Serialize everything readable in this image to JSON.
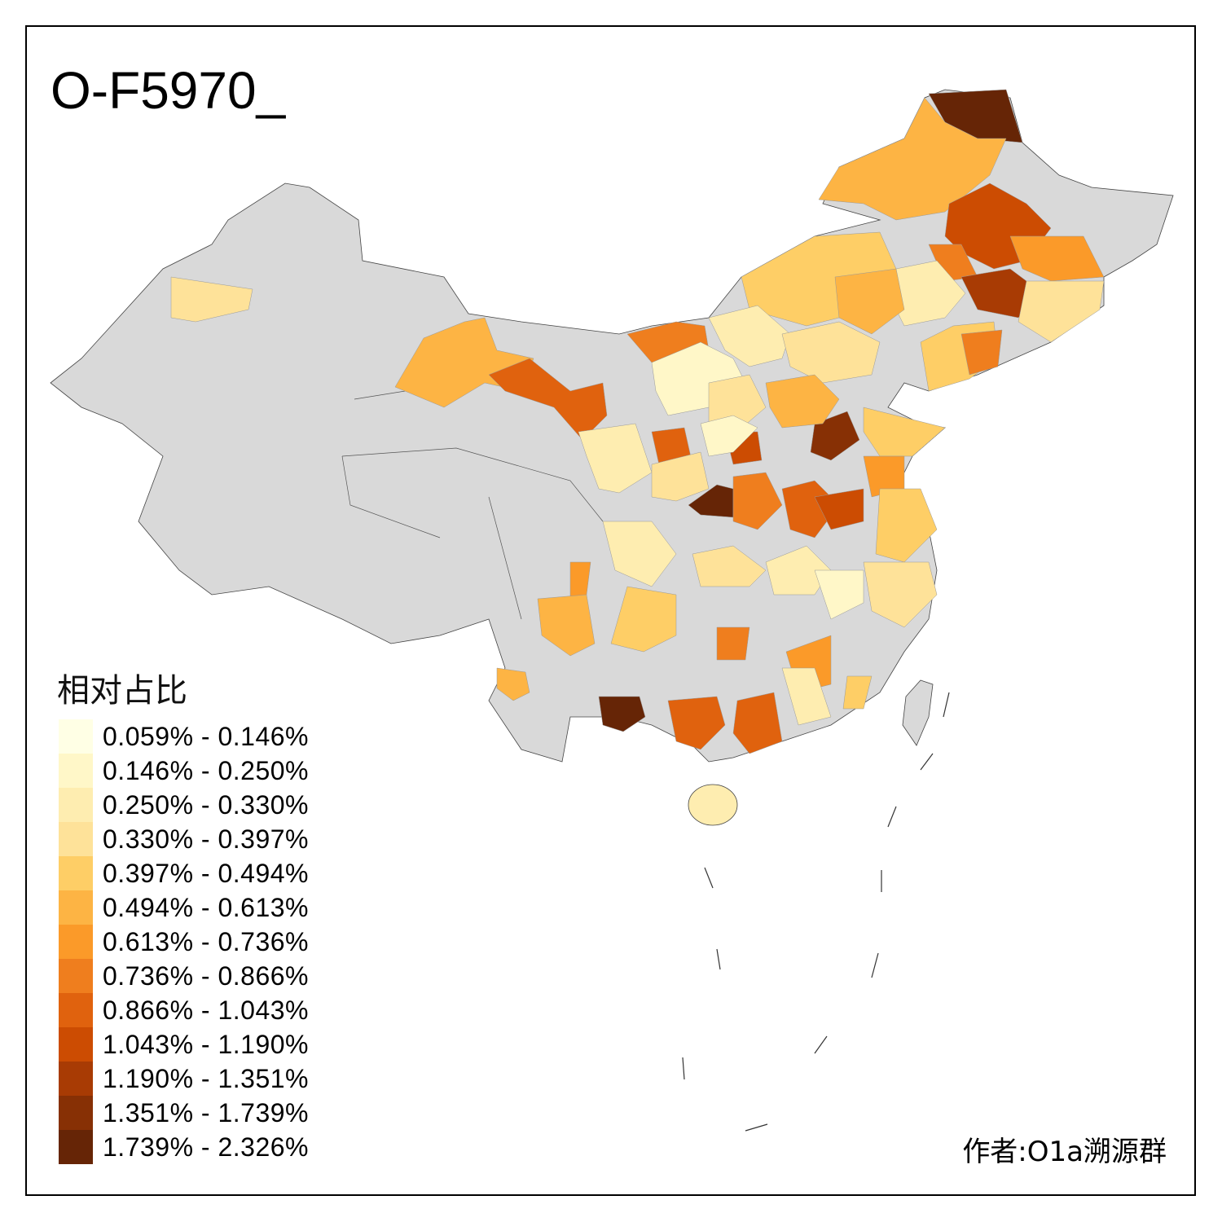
{
  "title": "O-F5970_",
  "legend": {
    "title": "相对占比",
    "classes": [
      {
        "label": "0.059% - 0.146%",
        "color": "#FFFFE5"
      },
      {
        "label": "0.146% - 0.250%",
        "color": "#FFF7C8"
      },
      {
        "label": "0.250% - 0.330%",
        "color": "#FEEDB0"
      },
      {
        "label": "0.330% - 0.397%",
        "color": "#FEE299"
      },
      {
        "label": "0.397% - 0.494%",
        "color": "#FECE66"
      },
      {
        "label": "0.494% - 0.613%",
        "color": "#FDB444"
      },
      {
        "label": "0.613% - 0.736%",
        "color": "#FB9A29"
      },
      {
        "label": "0.736% - 0.866%",
        "color": "#EF7E1E"
      },
      {
        "label": "0.866% - 1.043%",
        "color": "#E0620E"
      },
      {
        "label": "1.043% - 1.190%",
        "color": "#CC4C02"
      },
      {
        "label": "1.190% - 1.351%",
        "color": "#A83B04"
      },
      {
        "label": "1.351% - 1.739%",
        "color": "#873005"
      },
      {
        "label": "1.739% - 2.326%",
        "color": "#662506"
      }
    ]
  },
  "no_data_color": "#D9D9D9",
  "author": "作者:O1a溯源群",
  "region_classes": [
    12,
    5,
    5,
    9,
    7,
    6,
    4,
    10,
    3,
    2,
    5,
    7,
    1,
    2,
    3,
    4,
    7,
    8,
    3,
    11,
    12,
    9,
    8,
    5,
    4,
    2,
    3,
    1,
    7,
    8,
    9,
    6,
    4,
    3,
    2,
    6,
    12,
    8,
    5,
    7,
    3,
    2,
    1,
    4,
    6,
    8,
    2,
    4,
    5,
    3
  ]
}
